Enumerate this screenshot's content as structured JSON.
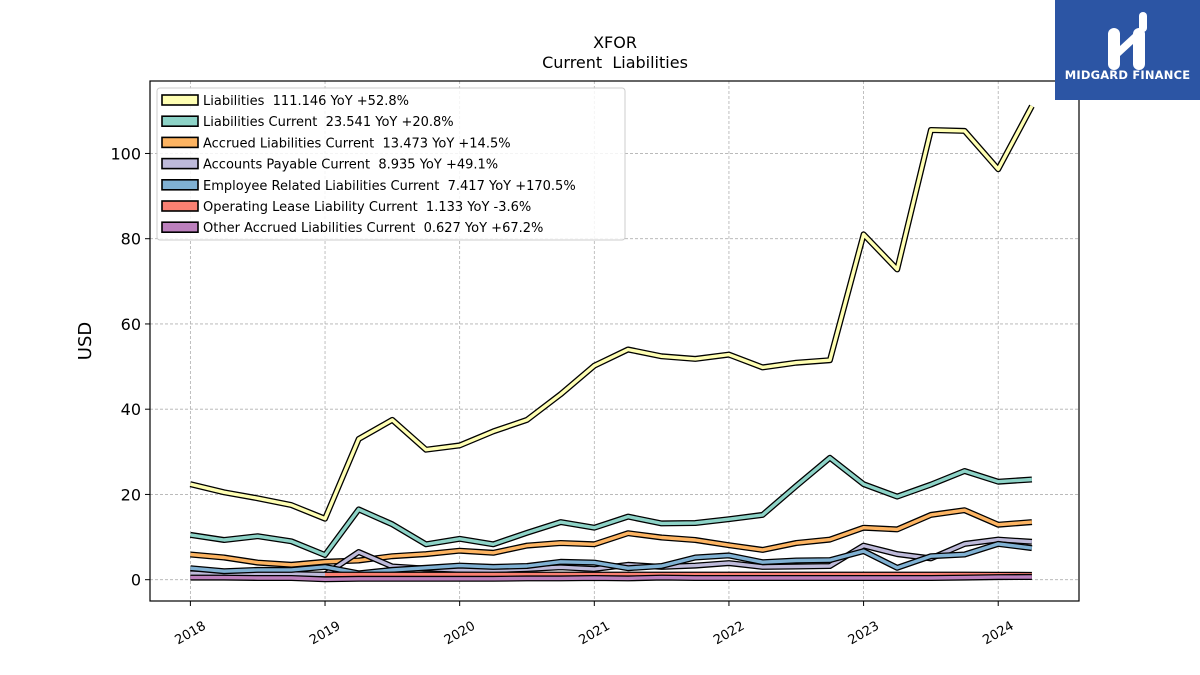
{
  "title": "XFOR",
  "subtitle": "Current  Liabilities",
  "brand": {
    "name": "MIDGARD FINANCE",
    "color": "#2c55a4"
  },
  "chart_data": {
    "type": "line",
    "ylabel": "USD",
    "xlabel": "",
    "ylim": [
      -5,
      117
    ],
    "xlim": [
      2017.7,
      2024.6
    ],
    "yticks": [
      0,
      20,
      40,
      60,
      80,
      100
    ],
    "xticks": [
      "2018",
      "2019",
      "2020",
      "2021",
      "2022",
      "2023",
      "2024"
    ],
    "grid": true,
    "legend_position": "upper-left",
    "x": [
      2018.0,
      2018.25,
      2018.5,
      2018.75,
      2019.0,
      2019.25,
      2019.5,
      2019.75,
      2020.0,
      2020.25,
      2020.5,
      2020.75,
      2021.0,
      2021.25,
      2021.5,
      2021.75,
      2022.0,
      2022.25,
      2022.5,
      2022.75,
      2023.0,
      2023.25,
      2023.5,
      2023.75,
      2024.0,
      2024.25
    ],
    "series": [
      {
        "name": "Liabilities",
        "legend": "Liabilities  111.146 YoY +52.8%",
        "color": "#ffffb3",
        "values": [
          22.4,
          20.5,
          19.1,
          17.5,
          14.3,
          33.0,
          37.5,
          30.5,
          31.5,
          34.8,
          37.5,
          43.5,
          50.2,
          54.0,
          52.4,
          51.8,
          52.8,
          49.8,
          50.9,
          51.5,
          81.0,
          72.8,
          105.5,
          105.3,
          96.3,
          111.1
        ]
      },
      {
        "name": "Liabilities Current",
        "legend": "Liabilities Current  23.541 YoY +20.8%",
        "color": "#8dd3c7",
        "values": [
          10.5,
          9.3,
          10.2,
          9.0,
          5.8,
          16.5,
          13.0,
          8.3,
          9.6,
          8.3,
          11.0,
          13.5,
          12.2,
          14.8,
          13.2,
          13.3,
          14.2,
          15.2,
          22.0,
          28.6,
          22.4,
          19.5,
          22.3,
          25.5,
          23.0,
          23.5
        ]
      },
      {
        "name": "Accrued Liabilities Current",
        "legend": "Accrued Liabilities Current  13.473 YoY +14.5%",
        "color": "#fdb462",
        "values": [
          5.9,
          5.2,
          4.0,
          3.5,
          4.2,
          4.5,
          5.5,
          6.0,
          6.8,
          6.3,
          8.0,
          8.6,
          8.3,
          10.9,
          9.9,
          9.3,
          8.1,
          7.0,
          8.6,
          9.4,
          12.2,
          11.8,
          15.2,
          16.3,
          12.9,
          13.5
        ]
      },
      {
        "name": "Accounts Payable Current",
        "legend": "Accounts Payable Current  8.935 YoY +49.1%",
        "color": "#bebada",
        "values": [
          1.5,
          1.4,
          1.3,
          1.3,
          1.2,
          6.5,
          3.1,
          2.6,
          2.3,
          2.2,
          2.5,
          2.9,
          2.5,
          3.5,
          3.0,
          3.3,
          3.9,
          3.0,
          3.1,
          3.2,
          8.0,
          6.0,
          5.0,
          8.4,
          9.4,
          8.9
        ]
      },
      {
        "name": "Employee Related Liabilities Current",
        "legend": "Employee Related Liabilities Current  7.417 YoY +170.5%",
        "color": "#80b1d3",
        "values": [
          2.7,
          2.0,
          2.3,
          2.3,
          3.0,
          1.5,
          2.3,
          2.8,
          3.3,
          3.0,
          3.2,
          4.2,
          4.0,
          2.7,
          3.2,
          5.2,
          5.7,
          4.1,
          4.5,
          4.6,
          6.7,
          2.8,
          5.5,
          5.9,
          8.4,
          7.4
        ]
      },
      {
        "name": "Operating Lease Liability Current",
        "legend": "Operating Lease Liability Current  1.133 YoY -3.6%",
        "color": "#fb8072",
        "values": [
          null,
          null,
          null,
          null,
          1.2,
          1.2,
          1.2,
          1.2,
          1.2,
          1.2,
          1.2,
          1.2,
          1.2,
          1.2,
          1.2,
          1.2,
          1.2,
          1.2,
          1.2,
          1.2,
          1.2,
          1.2,
          1.2,
          1.2,
          1.18,
          1.13
        ]
      },
      {
        "name": "Other Accrued Liabilities Current",
        "legend": "Other Accrued Liabilities Current  0.627 YoY +67.2%",
        "color": "#bc80bd",
        "values": [
          0.5,
          0.5,
          0.4,
          0.4,
          0.1,
          0.2,
          0.2,
          0.2,
          0.2,
          0.2,
          0.3,
          0.3,
          0.4,
          0.3,
          0.5,
          0.4,
          0.4,
          0.4,
          0.4,
          0.4,
          0.4,
          0.4,
          0.4,
          0.5,
          0.6,
          0.63
        ]
      }
    ]
  }
}
